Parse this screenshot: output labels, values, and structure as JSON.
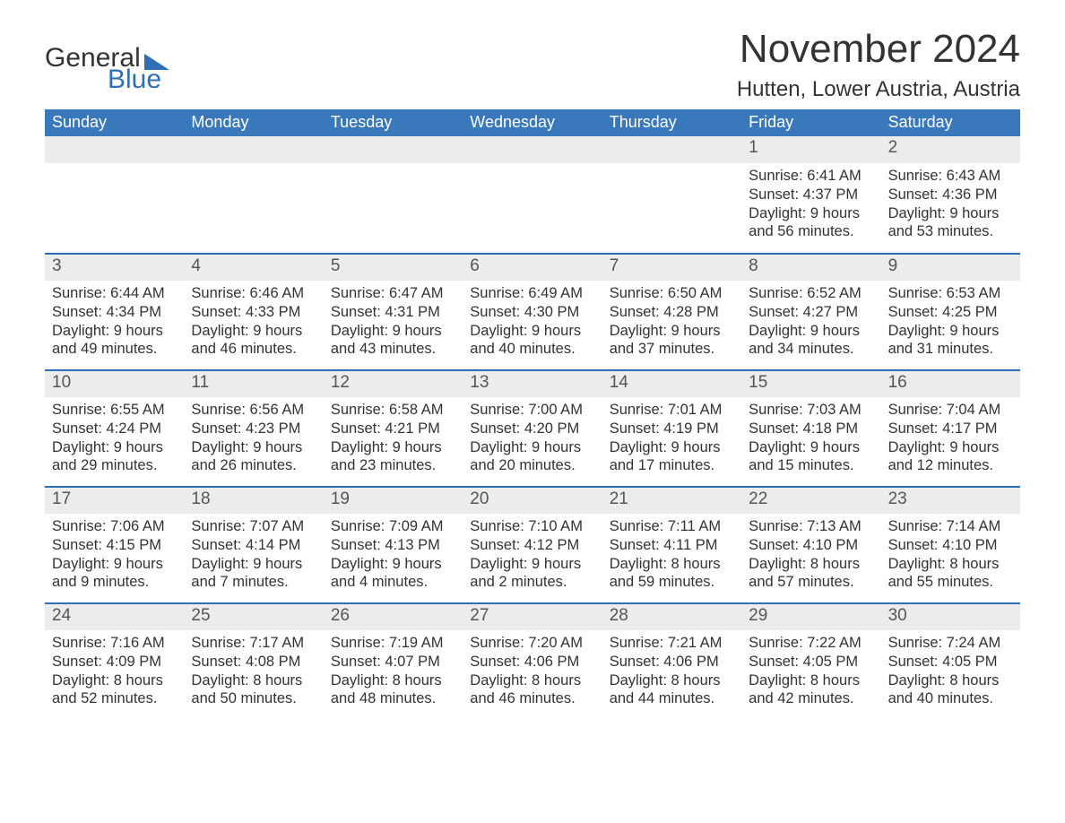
{
  "logo": {
    "text1": "General",
    "text2": "Blue",
    "color": "#2f6fb3"
  },
  "title": "November 2024",
  "location": "Hutten, Lower Austria, Austria",
  "colors": {
    "header_bg": "#3a78bc",
    "header_text": "#ffffff",
    "week_border": "#2f6fb3",
    "daynum_bg": "#ececec",
    "text": "#333333",
    "background": "#ffffff"
  },
  "fonts": {
    "title_size_pt": 33,
    "location_size_pt": 18,
    "dayheader_size_pt": 14,
    "daynum_size_pt": 14,
    "body_size_pt": 12
  },
  "calendar": {
    "type": "table",
    "columns": [
      "Sunday",
      "Monday",
      "Tuesday",
      "Wednesday",
      "Thursday",
      "Friday",
      "Saturday"
    ],
    "weeks": [
      [
        null,
        null,
        null,
        null,
        null,
        {
          "n": "1",
          "sunrise": "6:41 AM",
          "sunset": "4:37 PM",
          "dl1": "Daylight: 9 hours",
          "dl2": "and 56 minutes."
        },
        {
          "n": "2",
          "sunrise": "6:43 AM",
          "sunset": "4:36 PM",
          "dl1": "Daylight: 9 hours",
          "dl2": "and 53 minutes."
        }
      ],
      [
        {
          "n": "3",
          "sunrise": "6:44 AM",
          "sunset": "4:34 PM",
          "dl1": "Daylight: 9 hours",
          "dl2": "and 49 minutes."
        },
        {
          "n": "4",
          "sunrise": "6:46 AM",
          "sunset": "4:33 PM",
          "dl1": "Daylight: 9 hours",
          "dl2": "and 46 minutes."
        },
        {
          "n": "5",
          "sunrise": "6:47 AM",
          "sunset": "4:31 PM",
          "dl1": "Daylight: 9 hours",
          "dl2": "and 43 minutes."
        },
        {
          "n": "6",
          "sunrise": "6:49 AM",
          "sunset": "4:30 PM",
          "dl1": "Daylight: 9 hours",
          "dl2": "and 40 minutes."
        },
        {
          "n": "7",
          "sunrise": "6:50 AM",
          "sunset": "4:28 PM",
          "dl1": "Daylight: 9 hours",
          "dl2": "and 37 minutes."
        },
        {
          "n": "8",
          "sunrise": "6:52 AM",
          "sunset": "4:27 PM",
          "dl1": "Daylight: 9 hours",
          "dl2": "and 34 minutes."
        },
        {
          "n": "9",
          "sunrise": "6:53 AM",
          "sunset": "4:25 PM",
          "dl1": "Daylight: 9 hours",
          "dl2": "and 31 minutes."
        }
      ],
      [
        {
          "n": "10",
          "sunrise": "6:55 AM",
          "sunset": "4:24 PM",
          "dl1": "Daylight: 9 hours",
          "dl2": "and 29 minutes."
        },
        {
          "n": "11",
          "sunrise": "6:56 AM",
          "sunset": "4:23 PM",
          "dl1": "Daylight: 9 hours",
          "dl2": "and 26 minutes."
        },
        {
          "n": "12",
          "sunrise": "6:58 AM",
          "sunset": "4:21 PM",
          "dl1": "Daylight: 9 hours",
          "dl2": "and 23 minutes."
        },
        {
          "n": "13",
          "sunrise": "7:00 AM",
          "sunset": "4:20 PM",
          "dl1": "Daylight: 9 hours",
          "dl2": "and 20 minutes."
        },
        {
          "n": "14",
          "sunrise": "7:01 AM",
          "sunset": "4:19 PM",
          "dl1": "Daylight: 9 hours",
          "dl2": "and 17 minutes."
        },
        {
          "n": "15",
          "sunrise": "7:03 AM",
          "sunset": "4:18 PM",
          "dl1": "Daylight: 9 hours",
          "dl2": "and 15 minutes."
        },
        {
          "n": "16",
          "sunrise": "7:04 AM",
          "sunset": "4:17 PM",
          "dl1": "Daylight: 9 hours",
          "dl2": "and 12 minutes."
        }
      ],
      [
        {
          "n": "17",
          "sunrise": "7:06 AM",
          "sunset": "4:15 PM",
          "dl1": "Daylight: 9 hours",
          "dl2": "and 9 minutes."
        },
        {
          "n": "18",
          "sunrise": "7:07 AM",
          "sunset": "4:14 PM",
          "dl1": "Daylight: 9 hours",
          "dl2": "and 7 minutes."
        },
        {
          "n": "19",
          "sunrise": "7:09 AM",
          "sunset": "4:13 PM",
          "dl1": "Daylight: 9 hours",
          "dl2": "and 4 minutes."
        },
        {
          "n": "20",
          "sunrise": "7:10 AM",
          "sunset": "4:12 PM",
          "dl1": "Daylight: 9 hours",
          "dl2": "and 2 minutes."
        },
        {
          "n": "21",
          "sunrise": "7:11 AM",
          "sunset": "4:11 PM",
          "dl1": "Daylight: 8 hours",
          "dl2": "and 59 minutes."
        },
        {
          "n": "22",
          "sunrise": "7:13 AM",
          "sunset": "4:10 PM",
          "dl1": "Daylight: 8 hours",
          "dl2": "and 57 minutes."
        },
        {
          "n": "23",
          "sunrise": "7:14 AM",
          "sunset": "4:10 PM",
          "dl1": "Daylight: 8 hours",
          "dl2": "and 55 minutes."
        }
      ],
      [
        {
          "n": "24",
          "sunrise": "7:16 AM",
          "sunset": "4:09 PM",
          "dl1": "Daylight: 8 hours",
          "dl2": "and 52 minutes."
        },
        {
          "n": "25",
          "sunrise": "7:17 AM",
          "sunset": "4:08 PM",
          "dl1": "Daylight: 8 hours",
          "dl2": "and 50 minutes."
        },
        {
          "n": "26",
          "sunrise": "7:19 AM",
          "sunset": "4:07 PM",
          "dl1": "Daylight: 8 hours",
          "dl2": "and 48 minutes."
        },
        {
          "n": "27",
          "sunrise": "7:20 AM",
          "sunset": "4:06 PM",
          "dl1": "Daylight: 8 hours",
          "dl2": "and 46 minutes."
        },
        {
          "n": "28",
          "sunrise": "7:21 AM",
          "sunset": "4:06 PM",
          "dl1": "Daylight: 8 hours",
          "dl2": "and 44 minutes."
        },
        {
          "n": "29",
          "sunrise": "7:22 AM",
          "sunset": "4:05 PM",
          "dl1": "Daylight: 8 hours",
          "dl2": "and 42 minutes."
        },
        {
          "n": "30",
          "sunrise": "7:24 AM",
          "sunset": "4:05 PM",
          "dl1": "Daylight: 8 hours",
          "dl2": "and 40 minutes."
        }
      ]
    ],
    "labels": {
      "sunrise_prefix": "Sunrise: ",
      "sunset_prefix": "Sunset: "
    }
  }
}
